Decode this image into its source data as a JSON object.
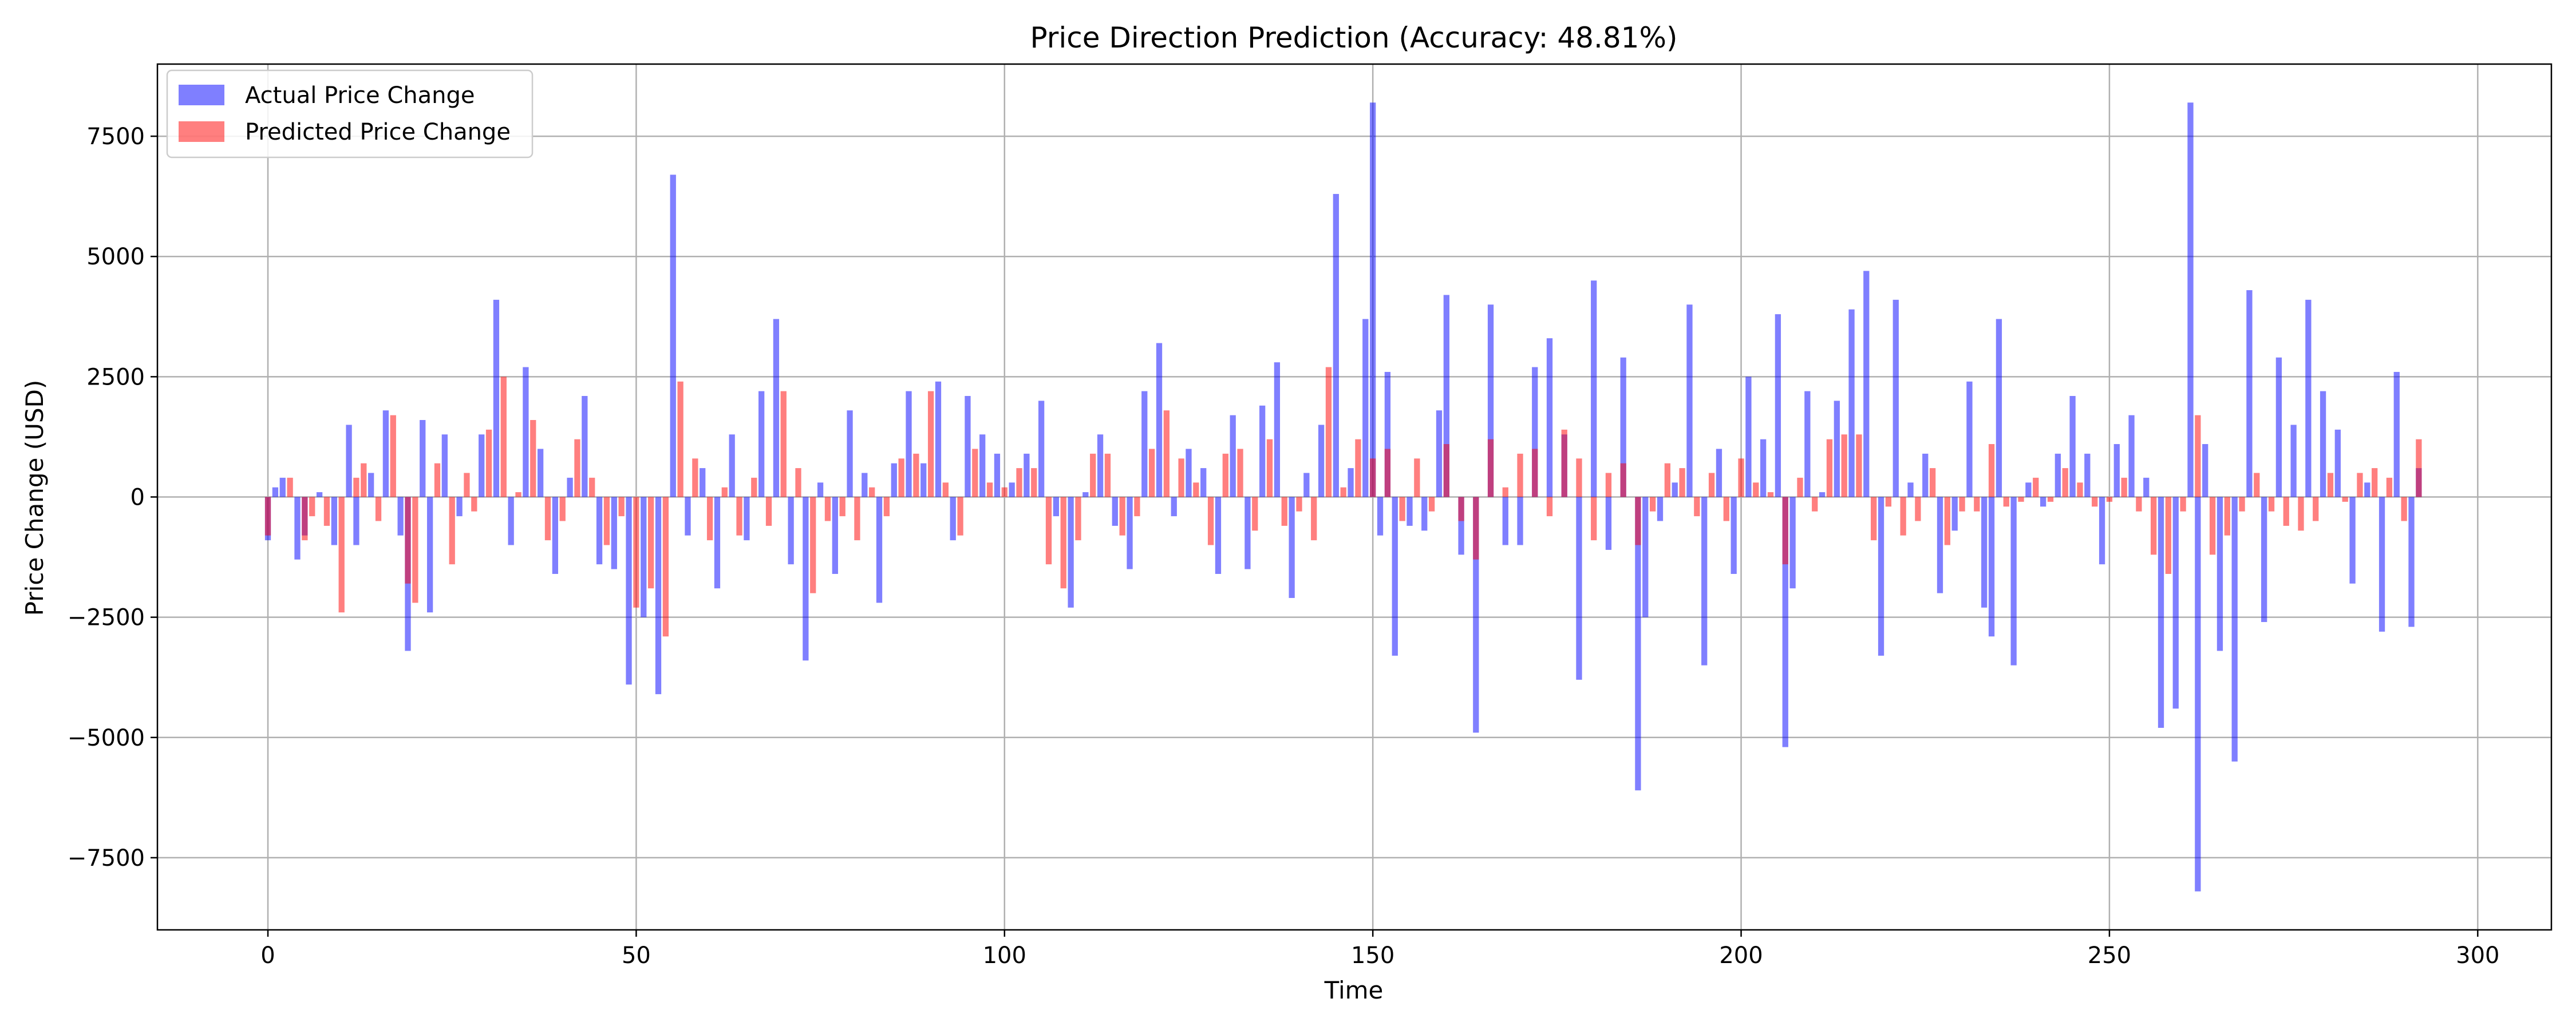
{
  "chart_data": {
    "type": "bar",
    "title": "Price Direction Prediction (Accuracy: 48.81%)",
    "xlabel": "Time",
    "ylabel": "Price Change (USD)",
    "xlim": [
      -15,
      310
    ],
    "ylim": [
      -9000,
      9000
    ],
    "xticks": [
      0,
      50,
      100,
      150,
      200,
      250,
      300
    ],
    "xtick_labels": [
      "0",
      "50",
      "100",
      "150",
      "200",
      "250",
      "300"
    ],
    "yticks": [
      -7500,
      -5000,
      -2500,
      0,
      2500,
      5000,
      7500
    ],
    "ytick_labels": [
      "−7500",
      "−5000",
      "−2500",
      "0",
      "2500",
      "5000",
      "7500"
    ],
    "grid": true,
    "legend_position": "top-left",
    "series": [
      {
        "name": "Actual Price Change",
        "color": "#0000ff",
        "alpha": 0.5,
        "x": [
          0,
          1,
          2,
          4,
          5,
          7,
          9,
          11,
          12,
          14,
          16,
          18,
          19,
          21,
          22,
          24,
          26,
          29,
          31,
          33,
          35,
          37,
          39,
          41,
          43,
          45,
          47,
          49,
          51,
          53,
          55,
          57,
          59,
          61,
          63,
          65,
          67,
          69,
          71,
          73,
          75,
          77,
          79,
          81,
          83,
          85,
          87,
          89,
          91,
          93,
          95,
          97,
          99,
          101,
          103,
          105,
          107,
          109,
          111,
          113,
          115,
          117,
          119,
          121,
          123,
          125,
          127,
          129,
          131,
          133,
          135,
          137,
          139,
          141,
          143,
          145,
          147,
          149,
          150,
          151,
          152,
          153,
          155,
          157,
          159,
          160,
          162,
          164,
          166,
          168,
          170,
          172,
          174,
          176,
          178,
          180,
          182,
          184,
          186,
          187,
          189,
          191,
          193,
          195,
          197,
          199,
          201,
          203,
          205,
          206,
          207,
          209,
          211,
          213,
          215,
          217,
          219,
          221,
          223,
          225,
          227,
          229,
          231,
          233,
          234,
          235,
          237,
          239,
          241,
          243,
          245,
          247,
          249,
          251,
          253,
          255,
          257,
          259,
          261,
          262,
          263,
          265,
          267,
          269,
          271,
          273,
          275,
          277,
          279,
          281,
          283,
          285,
          287,
          289,
          291,
          292
        ],
        "values": [
          -900,
          200,
          400,
          -1300,
          -800,
          100,
          -1000,
          1500,
          -1000,
          500,
          1800,
          -800,
          -3200,
          1600,
          -2400,
          1300,
          -400,
          1300,
          4100,
          -1000,
          2700,
          1000,
          -1600,
          400,
          2100,
          -1400,
          -1500,
          -3900,
          -2500,
          -4100,
          6700,
          -800,
          600,
          -1900,
          1300,
          -900,
          2200,
          3700,
          -1400,
          -3400,
          300,
          -1600,
          1800,
          500,
          -2200,
          700,
          2200,
          700,
          2400,
          -900,
          2100,
          1300,
          900,
          300,
          900,
          2000,
          -400,
          -2300,
          100,
          1300,
          -600,
          -1500,
          2200,
          3200,
          -400,
          1000,
          600,
          -1600,
          1700,
          -1500,
          1900,
          2800,
          -2100,
          500,
          1500,
          6300,
          600,
          3700,
          8200,
          -800,
          2600,
          -3300,
          -600,
          -700,
          1800,
          4200,
          -1200,
          -4900,
          4000,
          -1000,
          -1000,
          2700,
          3300,
          1300,
          -3800,
          4500,
          -1100,
          2900,
          -6100,
          -2500,
          -500,
          300,
          4000,
          -3500,
          1000,
          -1600,
          2500,
          1200,
          3800,
          -5200,
          -1900,
          2200,
          100,
          2000,
          3900,
          4700,
          -3300,
          4100,
          300,
          900,
          -2000,
          -700,
          2400,
          -2300,
          -2900,
          3700,
          -3500,
          300,
          -200,
          900,
          2100,
          900,
          -1400,
          1100,
          1700,
          400,
          -4800,
          -4400,
          8200,
          -8200,
          1100,
          -3200,
          -5500,
          4300,
          -2600,
          2900,
          1500,
          4100,
          2200,
          1400,
          -1800,
          300,
          -2800,
          2600,
          -2700,
          600
        ]
      },
      {
        "name": "Predicted Price Change",
        "color": "#ff0000",
        "alpha": 0.5,
        "x": [
          0,
          3,
          5,
          6,
          8,
          10,
          12,
          13,
          15,
          17,
          19,
          20,
          23,
          25,
          27,
          28,
          30,
          32,
          34,
          36,
          38,
          40,
          42,
          44,
          46,
          48,
          50,
          52,
          54,
          56,
          58,
          60,
          62,
          64,
          66,
          68,
          70,
          72,
          74,
          76,
          78,
          80,
          82,
          84,
          86,
          88,
          90,
          92,
          94,
          96,
          98,
          100,
          102,
          104,
          106,
          108,
          110,
          112,
          114,
          116,
          118,
          120,
          122,
          124,
          126,
          128,
          130,
          132,
          134,
          136,
          138,
          140,
          142,
          144,
          146,
          148,
          150,
          152,
          154,
          156,
          158,
          160,
          162,
          164,
          166,
          168,
          170,
          172,
          174,
          176,
          178,
          180,
          182,
          184,
          186,
          188,
          190,
          192,
          194,
          196,
          198,
          200,
          202,
          204,
          206,
          208,
          210,
          212,
          214,
          216,
          218,
          220,
          222,
          224,
          226,
          228,
          230,
          232,
          234,
          236,
          238,
          240,
          242,
          244,
          246,
          248,
          250,
          252,
          254,
          256,
          258,
          260,
          262,
          264,
          266,
          268,
          270,
          272,
          274,
          276,
          278,
          280,
          282,
          284,
          286,
          288,
          290,
          292
        ],
        "values": [
          -800,
          400,
          -900,
          -400,
          -600,
          -2400,
          400,
          700,
          -500,
          1700,
          -1800,
          -2200,
          700,
          -1400,
          500,
          -300,
          1400,
          2500,
          100,
          1600,
          -900,
          -500,
          1200,
          400,
          -1000,
          -400,
          -2300,
          -1900,
          -2900,
          2400,
          800,
          -900,
          200,
          -800,
          400,
          -600,
          2200,
          600,
          -2000,
          -500,
          -400,
          -900,
          200,
          -400,
          800,
          900,
          2200,
          300,
          -800,
          1000,
          300,
          200,
          600,
          600,
          -1400,
          -1900,
          -900,
          900,
          900,
          -800,
          -400,
          1000,
          1800,
          800,
          300,
          -1000,
          900,
          1000,
          -700,
          1200,
          -600,
          -300,
          -900,
          2700,
          200,
          1200,
          800,
          1000,
          -500,
          800,
          -300,
          1100,
          -500,
          -1300,
          1200,
          200,
          900,
          1000,
          -400,
          1400,
          800,
          -900,
          500,
          700,
          -1000,
          -300,
          700,
          600,
          -400,
          500,
          -500,
          800,
          300,
          100,
          -1400,
          400,
          -300,
          1200,
          1300,
          1300,
          -900,
          -200,
          -800,
          -500,
          600,
          -1000,
          -300,
          -300,
          1100,
          -200,
          -100,
          400,
          -100,
          600,
          300,
          -200,
          -100,
          400,
          -300,
          -1200,
          -1600,
          -300,
          1700,
          -1200,
          -800,
          -300,
          500,
          -300,
          -600,
          -700,
          -500,
          500,
          -100,
          500,
          600,
          400,
          -500,
          1200
        ]
      }
    ]
  }
}
